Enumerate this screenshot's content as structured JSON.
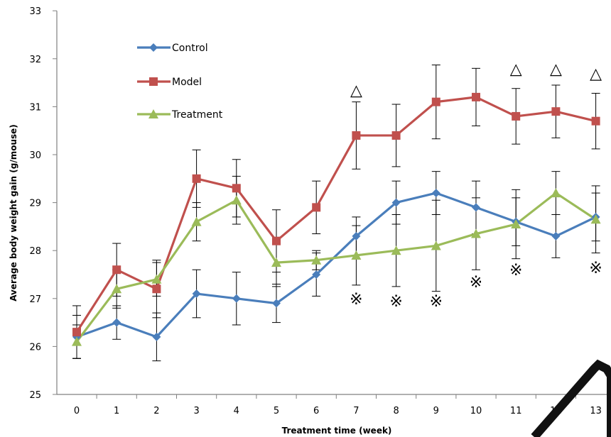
{
  "chart_data": {
    "type": "line",
    "title": "",
    "xlabel": "Treatment time (week)",
    "ylabel": "Average body weight gain (g/mouse)",
    "x": [
      0,
      1,
      2,
      3,
      4,
      5,
      6,
      7,
      8,
      9,
      10,
      11,
      12,
      13
    ],
    "xlim": [
      0,
      13
    ],
    "ylim": [
      25,
      33
    ],
    "yticks": [
      25,
      26,
      27,
      28,
      29,
      30,
      31,
      32,
      33
    ],
    "grid": false,
    "legend_position": "top-left",
    "series": [
      {
        "name": "Control",
        "color": "#4a7ebb",
        "marker": "diamond",
        "values": [
          26.2,
          26.5,
          26.2,
          27.1,
          27.0,
          26.9,
          27.5,
          28.3,
          29.0,
          29.2,
          28.9,
          28.6,
          28.3,
          28.7
        ],
        "error": [
          0.45,
          0.35,
          0.5,
          0.5,
          0.55,
          0.4,
          0.45,
          0.4,
          0.45,
          0.45,
          0.55,
          0.5,
          0.45,
          0.5
        ]
      },
      {
        "name": "Model",
        "color": "#c0504d",
        "marker": "square",
        "values": [
          26.3,
          27.6,
          27.2,
          29.5,
          29.3,
          28.2,
          28.9,
          30.4,
          30.4,
          31.1,
          31.2,
          30.8,
          30.9,
          30.7
        ],
        "error": [
          0.55,
          0.55,
          0.6,
          0.6,
          0.6,
          0.65,
          0.55,
          0.7,
          0.65,
          0.77,
          0.6,
          0.58,
          0.55,
          0.58
        ]
      },
      {
        "name": "Treatment",
        "color": "#9bbb59",
        "marker": "triangle",
        "values": [
          26.1,
          27.2,
          27.4,
          28.6,
          29.05,
          27.75,
          27.8,
          27.9,
          28.0,
          28.1,
          28.35,
          28.55,
          29.2,
          28.65
        ],
        "error": [
          0.35,
          0.4,
          0.35,
          0.4,
          0.5,
          0.5,
          0.2,
          0.62,
          0.75,
          0.95,
          0.75,
          0.72,
          0.45,
          0.7
        ]
      }
    ],
    "annotations": [
      {
        "symbol": "△",
        "x": 7,
        "y": 31.35
      },
      {
        "symbol": "△",
        "x": 11,
        "y": 31.8
      },
      {
        "symbol": "△",
        "x": 12,
        "y": 31.8
      },
      {
        "symbol": "△",
        "x": 13,
        "y": 31.7
      },
      {
        "symbol": "※",
        "x": 7,
        "y": 27.0
      },
      {
        "symbol": "※",
        "x": 8,
        "y": 26.95
      },
      {
        "symbol": "※",
        "x": 9,
        "y": 26.95
      },
      {
        "symbol": "※",
        "x": 10,
        "y": 27.35
      },
      {
        "symbol": "※",
        "x": 11,
        "y": 27.6
      },
      {
        "symbol": "※",
        "x": 13,
        "y": 27.65
      }
    ]
  }
}
